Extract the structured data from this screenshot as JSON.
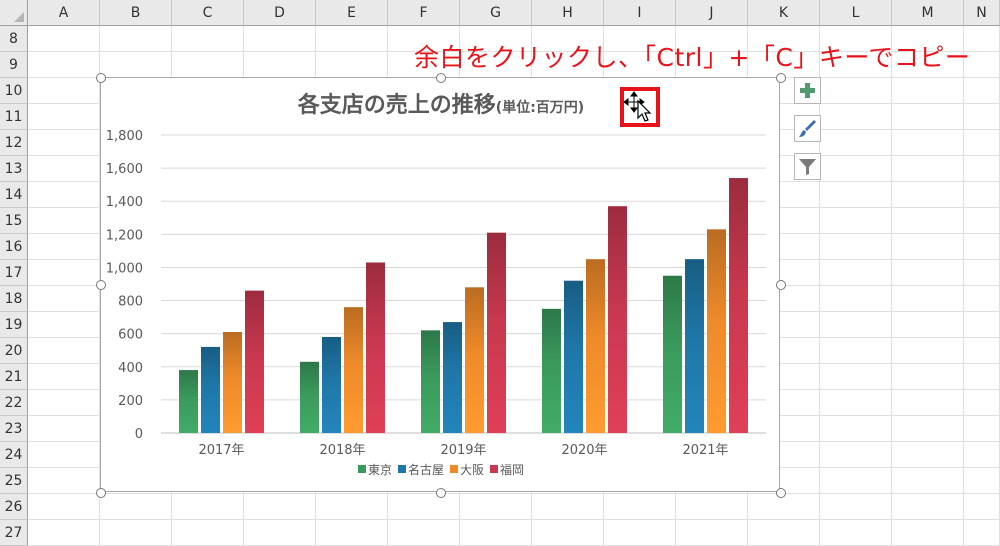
{
  "spreadsheet": {
    "columns": [
      "A",
      "B",
      "C",
      "D",
      "E",
      "F",
      "G",
      "H",
      "I",
      "J",
      "K",
      "L",
      "M",
      "N"
    ],
    "rows": [
      "8",
      "9",
      "10",
      "11",
      "12",
      "13",
      "14",
      "15",
      "16",
      "17",
      "18",
      "19",
      "20",
      "21",
      "22",
      "23",
      "24",
      "25",
      "26",
      "27"
    ]
  },
  "instruction_text": "余白をクリックし、「Ctrl」+「C」キーでコピー",
  "chart_buttons": {
    "add_elements_icon": "plus-icon",
    "style_icon": "paintbrush-icon",
    "filter_icon": "funnel-icon"
  },
  "chart_data": {
    "type": "bar",
    "title": "各支店の売上の推移",
    "title_suffix": "(単位:百万円)",
    "categories": [
      "2017年",
      "2018年",
      "2019年",
      "2020年",
      "2021年"
    ],
    "series": [
      {
        "name": "東京",
        "color": "#3a9a5c",
        "values": [
          380,
          430,
          620,
          750,
          950
        ]
      },
      {
        "name": "名古屋",
        "color": "#1f77a8",
        "values": [
          520,
          580,
          670,
          920,
          1050
        ]
      },
      {
        "name": "大阪",
        "color": "#ee8a2a",
        "values": [
          610,
          760,
          880,
          1050,
          1230
        ]
      },
      {
        "name": "福岡",
        "color": "#c8384f",
        "values": [
          860,
          1030,
          1210,
          1370,
          1540
        ]
      }
    ],
    "ylim": [
      0,
      1800
    ],
    "yticks": [
      "0",
      "200",
      "400",
      "600",
      "800",
      "1,000",
      "1,200",
      "1,400",
      "1,600",
      "1,800"
    ],
    "grid": true,
    "legend_position": "bottom"
  }
}
